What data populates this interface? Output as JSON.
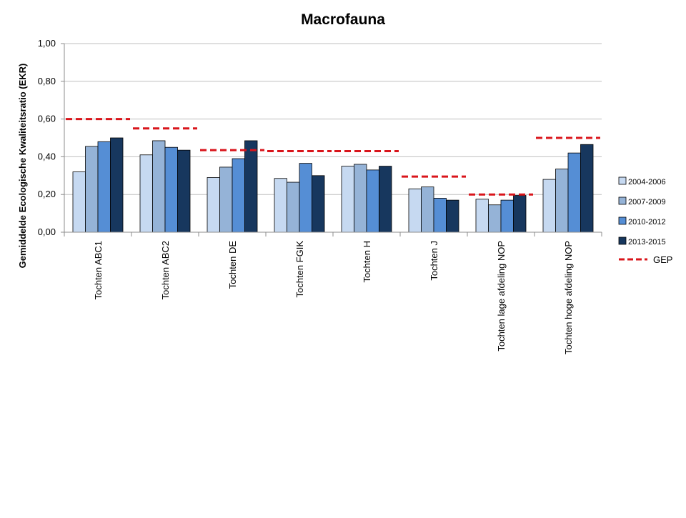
{
  "chart_data": {
    "type": "bar",
    "title": "Macrofauna",
    "xlabel": "",
    "ylabel": "Gemiddelde Ecologische Kwaliteitsratio (EKR)",
    "ylim": [
      0,
      1.0
    ],
    "yticks": [
      "0,00",
      "0,20",
      "0,40",
      "0,60",
      "0,80",
      "1,00"
    ],
    "grid": true,
    "legend_position": "right",
    "categories": [
      "Tochten ABC1",
      "Tochten ABC2",
      "Tochten DE",
      "Tochten FGIK",
      "Tochten H",
      "Tochten J",
      "Tochten lage afdeling NOP",
      "Tochten hoge afdeling NOP"
    ],
    "series": [
      {
        "name": "2004-2006",
        "color": "#c6d9f1",
        "values": [
          0.32,
          0.41,
          0.29,
          0.285,
          0.35,
          0.23,
          0.175,
          0.28
        ]
      },
      {
        "name": "2007-2009",
        "color": "#95b3d7",
        "values": [
          0.455,
          0.485,
          0.345,
          0.265,
          0.36,
          0.24,
          0.145,
          0.335
        ]
      },
      {
        "name": "2010-2012",
        "color": "#558ed5",
        "values": [
          0.48,
          0.45,
          0.39,
          0.365,
          0.33,
          0.18,
          0.17,
          0.42
        ]
      },
      {
        "name": "2013-2015",
        "color": "#17375e",
        "values": [
          0.5,
          0.435,
          0.485,
          0.3,
          0.35,
          0.17,
          0.195,
          0.465
        ]
      }
    ],
    "reference_line": {
      "name": "GEP",
      "color": "#d9151b",
      "style": "dashed",
      "values": [
        0.6,
        0.55,
        0.435,
        0.43,
        0.43,
        0.295,
        0.2,
        0.5
      ]
    }
  }
}
